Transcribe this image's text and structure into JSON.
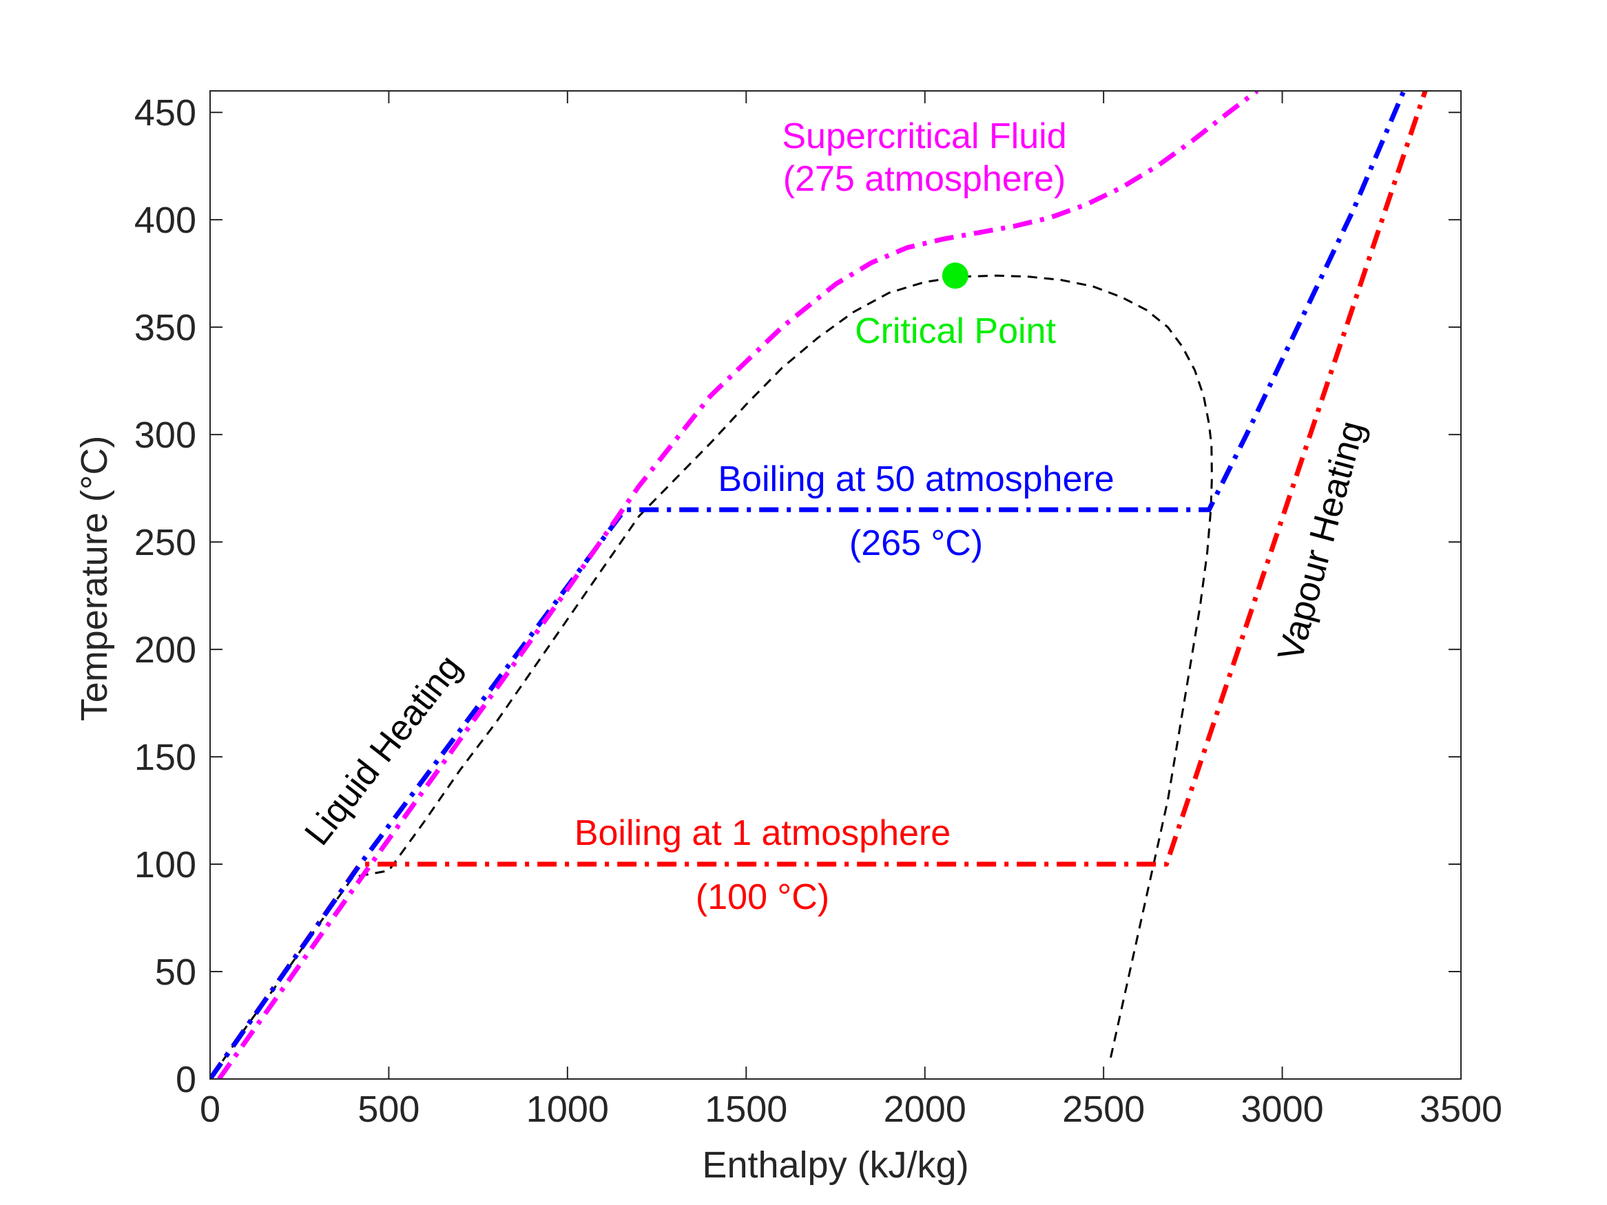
{
  "chart_data": {
    "type": "line",
    "xlabel": "Enthalpy (kJ/kg)",
    "ylabel": "Temperature (°C)",
    "xlim": [
      0,
      3500
    ],
    "ylim": [
      0,
      460
    ],
    "xticks": [
      0,
      500,
      1000,
      1500,
      2000,
      2500,
      3000,
      3500
    ],
    "yticks": [
      0,
      50,
      100,
      150,
      200,
      250,
      300,
      350,
      400,
      450
    ],
    "grid": false,
    "colors": {
      "one_atm": "#ff0000",
      "fifty_atm": "#0000ff",
      "supercritical": "#ff00ff",
      "dome": "#000000",
      "critical_point": "#00ee00",
      "axis": "#262626"
    },
    "series": [
      {
        "key": "dome",
        "style": "dashed",
        "x": [
          2520,
          2560,
          2600,
          2640,
          2680,
          2710,
          2740,
          2770,
          2790,
          2800,
          2803,
          2802,
          2795,
          2780,
          2755,
          2720,
          2680,
          2620,
          2550,
          2470,
          2380,
          2290,
          2200,
          2100,
          2000,
          1900,
          1800,
          1700,
          1600,
          1500,
          1400,
          1300,
          1200,
          1100,
          1000,
          900,
          800,
          700,
          600,
          500,
          400,
          300,
          200,
          100,
          0
        ],
        "y": [
          10,
          40,
          70,
          100,
          130,
          160,
          190,
          220,
          245,
          265,
          280,
          295,
          305,
          318,
          330,
          341,
          350,
          358,
          364,
          369,
          372,
          373.5,
          374,
          373.5,
          371,
          366,
          357,
          345,
          331,
          314,
          296,
          279,
          262,
          238,
          214,
          190,
          166,
          144,
          120,
          97,
          94,
          71,
          47,
          24,
          0
        ]
      },
      {
        "key": "one_atm",
        "style": "dashdot",
        "x": [
          0,
          419,
          2676,
          3400
        ],
        "y": [
          0,
          100,
          100,
          460
        ]
      },
      {
        "key": "fifty_atm",
        "style": "dashdot",
        "x": [
          0,
          420,
          1160,
          2795,
          2900,
          3000,
          3100,
          3200,
          3340
        ],
        "y": [
          0,
          100,
          265,
          265,
          300,
          335,
          370,
          405,
          460
        ]
      },
      {
        "key": "supercritical",
        "style": "dashdot",
        "x": [
          25,
          450,
          1000,
          1200,
          1400,
          1600,
          1750,
          1850,
          1950,
          2050,
          2150,
          2250,
          2350,
          2450,
          2550,
          2650,
          2750,
          2850,
          2930
        ],
        "y": [
          0,
          100,
          228,
          276,
          318,
          350,
          370,
          380,
          387,
          391,
          394,
          397,
          401,
          407,
          415,
          425,
          437,
          450,
          460
        ]
      }
    ],
    "critical_point": {
      "x": 2085,
      "y": 374
    },
    "annotations": {
      "supercritical_line1": "Supercritical Fluid",
      "supercritical_line2": "(275 atmosphere)",
      "critical_point": "Critical Point",
      "boil50": "Boiling at 50 atmosphere",
      "boil50_temp": "(265 °C)",
      "boil1": "Boiling at 1 atmosphere",
      "boil1_temp": "(100 °C)",
      "liquid_heating": "Liquid Heating",
      "vapour_heating": "Vapour Heating"
    }
  }
}
